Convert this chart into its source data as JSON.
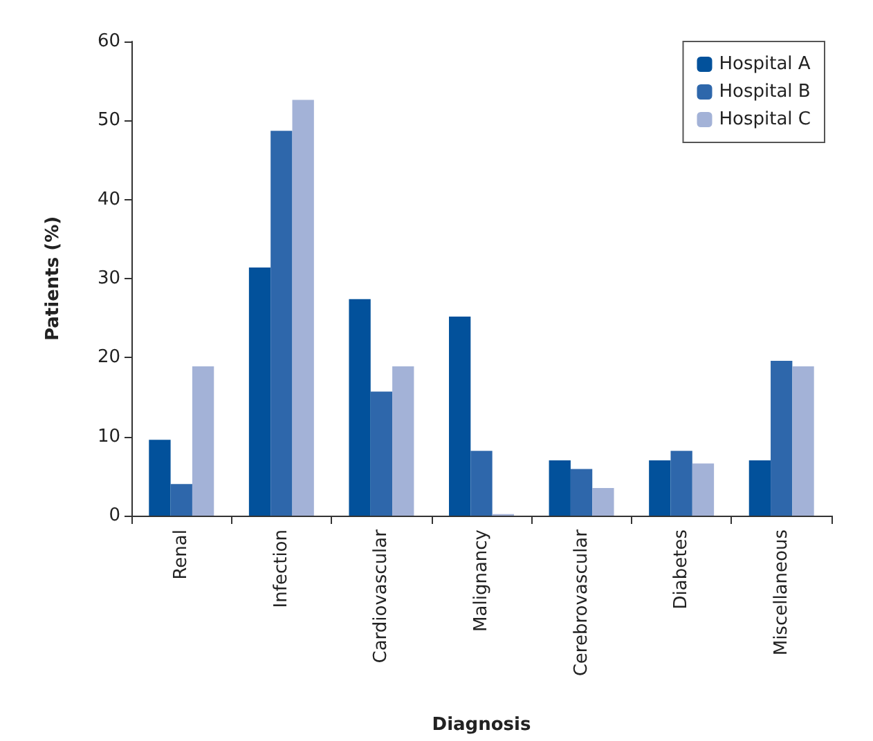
{
  "chart_data": {
    "type": "bar",
    "xlabel": "Diagnosis",
    "ylabel": "Patients (%)",
    "categories": [
      "Renal",
      "Infection",
      "Cardiovascular",
      "Malignancy",
      "Cerebrovascular",
      "Diabetes",
      "Miscellaneous"
    ],
    "series": [
      {
        "name": "Hospital A",
        "color": "#02519b",
        "values": [
          9.6,
          31.4,
          27.4,
          25.2,
          7.0,
          7.0,
          7.0
        ]
      },
      {
        "name": "Hospital B",
        "color": "#2e67ab",
        "values": [
          4.0,
          48.7,
          15.7,
          8.2,
          5.9,
          8.2,
          19.6
        ]
      },
      {
        "name": "Hospital C",
        "color": "#a3b2d7",
        "values": [
          18.9,
          52.6,
          18.9,
          0.2,
          3.5,
          6.6,
          18.9
        ]
      }
    ],
    "ylim": [
      0,
      60
    ],
    "yticks": [
      0,
      10,
      20,
      30,
      40,
      50,
      60
    ],
    "grid": false,
    "legend": "top right"
  }
}
